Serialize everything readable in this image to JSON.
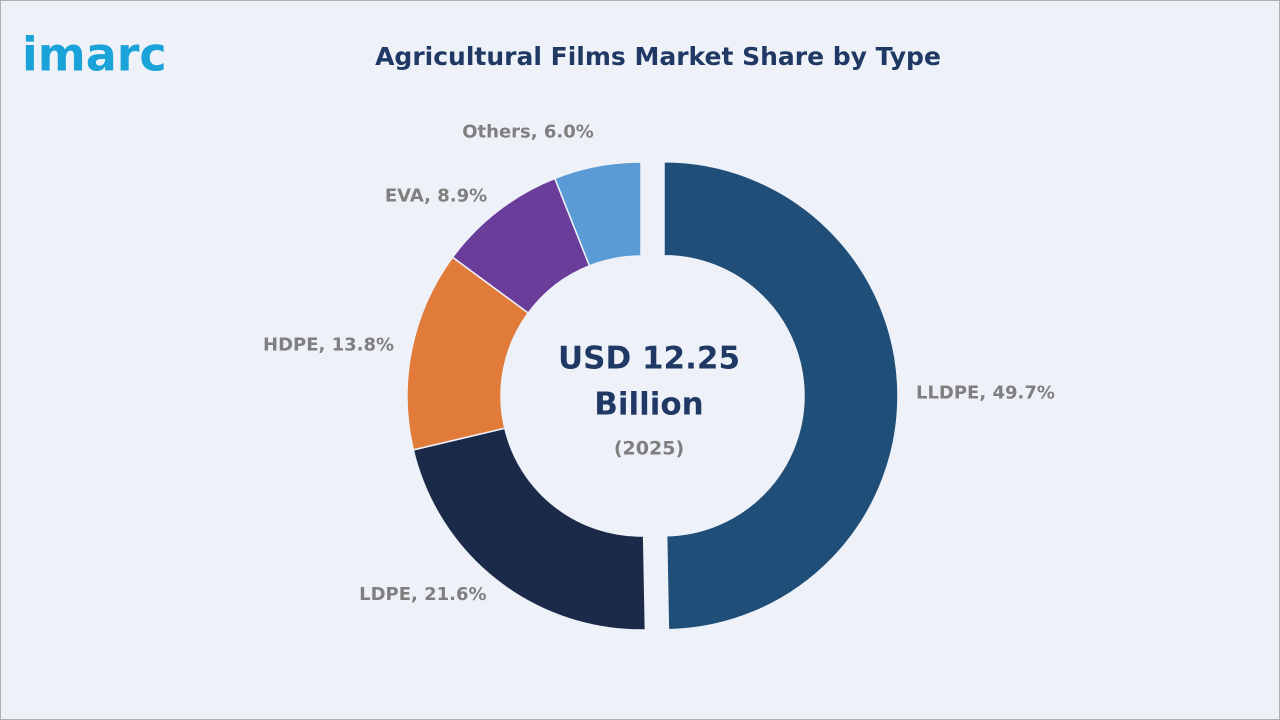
{
  "logo": "imarc",
  "chart_data": {
    "type": "donut",
    "title": "Agricultural Films Market Share by Type",
    "values": [
      49.7,
      21.6,
      13.8,
      8.9,
      6.0
    ],
    "value_labels": [
      "LLDPE, 49.7%",
      "LDPE, 21.6%",
      "HDPE, 13.8%",
      "EVA, 8.9%",
      "Others, 6.0%"
    ],
    "colors": [
      "#1f4e79",
      "#1c2a4a",
      "#e07b39",
      "#6a3d9a",
      "#5b9bd5"
    ],
    "center_label": [
      "USD 12.25",
      "Billion"
    ],
    "center_sublabel": "(2025)"
  }
}
